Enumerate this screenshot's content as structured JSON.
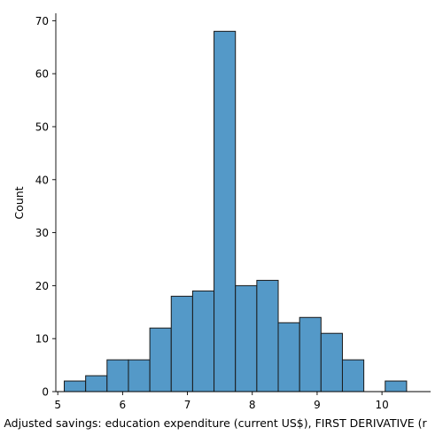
{
  "chart_data": {
    "type": "bar",
    "subtype": "histogram",
    "xlabel": "Adjusted savings: education expenditure (current US$), FIRST DERIVATIVE (r",
    "ylabel": "Count",
    "xlim": [
      4.97,
      10.75
    ],
    "ylim": [
      0,
      71.4
    ],
    "xticks": [
      5,
      6,
      7,
      8,
      9,
      10
    ],
    "yticks": [
      0,
      10,
      20,
      30,
      40,
      50,
      60,
      70
    ],
    "bin_edges": [
      5.1,
      5.43,
      5.76,
      6.09,
      6.42,
      6.75,
      7.08,
      7.41,
      7.74,
      8.07,
      8.4,
      8.73,
      9.06,
      9.39,
      9.72,
      10.05,
      10.38,
      10.71
    ],
    "counts": [
      2,
      3,
      6,
      6,
      12,
      18,
      19,
      68,
      20,
      21,
      13,
      14,
      11,
      6,
      0,
      2,
      0
    ],
    "grid": false,
    "bar_color": "#5499c8",
    "edge_color": "#1a1a1a"
  }
}
